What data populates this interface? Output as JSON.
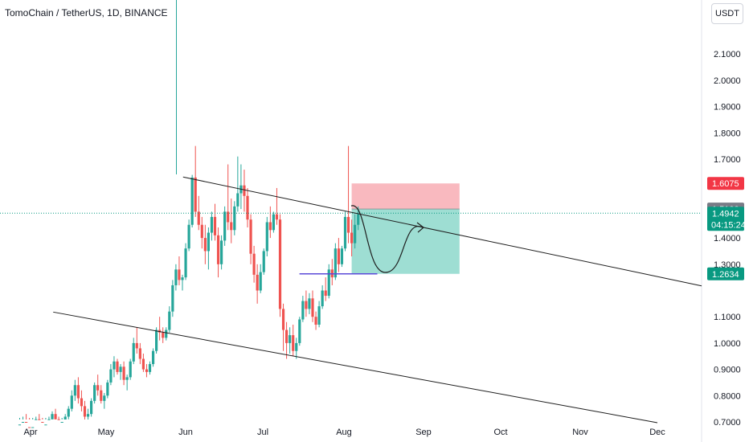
{
  "header": {
    "title": "TomoChain / TetherUS, 1D, BINANCE",
    "currency": "USDT"
  },
  "colors": {
    "up": "#26a69a",
    "down": "#ef5350",
    "stop_zone": "#f7a1a9",
    "target_zone": "#7ed3c4",
    "level_line": "#5b4bd8",
    "price_tag_red": "#f23645",
    "price_tag_grey": "#787b86",
    "price_tag_green": "#089981"
  },
  "chart_data": {
    "type": "candlestick",
    "instrument": "TomoChain / TetherUS",
    "interval": "1D",
    "exchange": "BINANCE",
    "y_ticks": [
      "2.1000",
      "2.0000",
      "1.9000",
      "1.8000",
      "1.7000",
      "1.4000",
      "1.3000",
      "1.1000",
      "1.0000",
      "0.9000",
      "0.8000",
      "0.7000"
    ],
    "x_ticks": [
      "Apr",
      "May",
      "Jun",
      "Jul",
      "Aug",
      "Sep",
      "Oct",
      "Nov",
      "Dec"
    ],
    "ylim": [
      0.69,
      2.2
    ],
    "price_tags": [
      {
        "label": "1.6075",
        "value": 1.6075,
        "kind": "stop"
      },
      {
        "label": "1.5100",
        "value": 1.51,
        "kind": "entry"
      },
      {
        "label": "1.4942",
        "value": 1.4942,
        "kind": "last",
        "countdown": "04:15:24"
      },
      {
        "label": "1.2634",
        "value": 1.2634,
        "kind": "target"
      }
    ],
    "trendlines": [
      {
        "from": [
          "May 31",
          1.632
        ],
        "to": [
          "Dec 1",
          1.253
        ]
      },
      {
        "from": [
          "Apr 10",
          1.118
        ],
        "to": [
          "Dec 1",
          0.697
        ]
      }
    ],
    "support_level": {
      "value": 1.2634,
      "from": "Jul 15",
      "to": "Aug 14"
    },
    "position": {
      "entry": 1.51,
      "stop": 1.6075,
      "target": 1.2634,
      "from": "Aug 4",
      "to": "Sep 15"
    },
    "projection": "price dips to 1.2634 then rebounds toward 1.44",
    "candles": [
      [
        0.68,
        0.7,
        0.66,
        0.69
      ],
      [
        0.69,
        0.72,
        0.67,
        0.7
      ],
      [
        0.7,
        0.73,
        0.66,
        0.68
      ],
      [
        0.68,
        0.7,
        0.65,
        0.66
      ],
      [
        0.66,
        0.69,
        0.64,
        0.68
      ],
      [
        0.68,
        0.72,
        0.67,
        0.71
      ],
      [
        0.71,
        0.73,
        0.69,
        0.7
      ],
      [
        0.7,
        0.71,
        0.67,
        0.68
      ],
      [
        0.68,
        0.7,
        0.66,
        0.69
      ],
      [
        0.69,
        0.72,
        0.68,
        0.71
      ],
      [
        0.71,
        0.74,
        0.7,
        0.73
      ],
      [
        0.73,
        0.75,
        0.7,
        0.71
      ],
      [
        0.71,
        0.72,
        0.68,
        0.69
      ],
      [
        0.69,
        0.71,
        0.67,
        0.7
      ],
      [
        0.7,
        0.73,
        0.69,
        0.72
      ],
      [
        0.72,
        0.76,
        0.71,
        0.75
      ],
      [
        0.75,
        0.82,
        0.74,
        0.8
      ],
      [
        0.8,
        0.86,
        0.78,
        0.84
      ],
      [
        0.84,
        0.87,
        0.77,
        0.79
      ],
      [
        0.79,
        0.82,
        0.74,
        0.76
      ],
      [
        0.76,
        0.78,
        0.7,
        0.72
      ],
      [
        0.72,
        0.75,
        0.69,
        0.73
      ],
      [
        0.73,
        0.79,
        0.72,
        0.78
      ],
      [
        0.78,
        0.85,
        0.77,
        0.84
      ],
      [
        0.84,
        0.88,
        0.8,
        0.82
      ],
      [
        0.82,
        0.84,
        0.77,
        0.78
      ],
      [
        0.78,
        0.81,
        0.75,
        0.8
      ],
      [
        0.8,
        0.86,
        0.79,
        0.85
      ],
      [
        0.85,
        0.92,
        0.84,
        0.9
      ],
      [
        0.9,
        0.95,
        0.87,
        0.93
      ],
      [
        0.93,
        0.94,
        0.88,
        0.89
      ],
      [
        0.89,
        0.92,
        0.86,
        0.91
      ],
      [
        0.91,
        0.93,
        0.84,
        0.86
      ],
      [
        0.86,
        0.88,
        0.82,
        0.87
      ],
      [
        0.87,
        0.94,
        0.86,
        0.93
      ],
      [
        0.93,
        1.02,
        0.92,
        1.0
      ],
      [
        1.0,
        1.06,
        0.96,
        0.98
      ],
      [
        0.98,
        1.0,
        0.92,
        0.94
      ],
      [
        0.94,
        0.96,
        0.89,
        0.9
      ],
      [
        0.9,
        0.92,
        0.87,
        0.89
      ],
      [
        0.89,
        0.93,
        0.88,
        0.92
      ],
      [
        0.92,
        0.98,
        0.91,
        0.97
      ],
      [
        0.97,
        1.06,
        0.96,
        1.05
      ],
      [
        1.05,
        1.1,
        1.01,
        1.04
      ],
      [
        1.04,
        1.06,
        1.0,
        1.02
      ],
      [
        1.02,
        1.06,
        1.01,
        1.05
      ],
      [
        1.05,
        1.14,
        1.04,
        1.12
      ],
      [
        1.12,
        1.24,
        1.1,
        1.22
      ],
      [
        1.22,
        1.3,
        1.2,
        1.28
      ],
      [
        1.28,
        1.33,
        1.22,
        1.24
      ],
      [
        1.24,
        1.26,
        1.2,
        1.25
      ],
      [
        1.25,
        1.38,
        1.24,
        1.36
      ],
      [
        1.36,
        1.47,
        1.35,
        1.45
      ],
      [
        1.45,
        1.64,
        1.44,
        1.63
      ],
      [
        1.63,
        1.75,
        1.48,
        1.5
      ],
      [
        1.5,
        1.56,
        1.43,
        1.45
      ],
      [
        1.45,
        1.48,
        1.36,
        1.4
      ],
      [
        1.4,
        1.45,
        1.3,
        1.35
      ],
      [
        1.35,
        1.44,
        1.28,
        1.42
      ],
      [
        1.42,
        1.5,
        1.39,
        1.48
      ],
      [
        1.48,
        1.53,
        1.39,
        1.41
      ],
      [
        1.41,
        1.44,
        1.25,
        1.3
      ],
      [
        1.3,
        1.41,
        1.28,
        1.39
      ],
      [
        1.39,
        1.52,
        1.37,
        1.5
      ],
      [
        1.5,
        1.68,
        1.43,
        1.46
      ],
      [
        1.46,
        1.55,
        1.38,
        1.43
      ],
      [
        1.43,
        1.54,
        1.41,
        1.52
      ],
      [
        1.52,
        1.71,
        1.5,
        1.57
      ],
      [
        1.57,
        1.68,
        1.51,
        1.6
      ],
      [
        1.6,
        1.66,
        1.5,
        1.56
      ],
      [
        1.56,
        1.59,
        1.44,
        1.47
      ],
      [
        1.47,
        1.49,
        1.3,
        1.34
      ],
      [
        1.34,
        1.37,
        1.23,
        1.26
      ],
      [
        1.26,
        1.3,
        1.15,
        1.2
      ],
      [
        1.2,
        1.3,
        1.19,
        1.27
      ],
      [
        1.27,
        1.36,
        1.26,
        1.35
      ],
      [
        1.35,
        1.48,
        1.33,
        1.46
      ],
      [
        1.46,
        1.52,
        1.4,
        1.43
      ],
      [
        1.43,
        1.5,
        1.42,
        1.49
      ],
      [
        1.49,
        1.59,
        1.45,
        1.47
      ],
      [
        1.47,
        1.49,
        1.1,
        1.13
      ],
      [
        1.13,
        1.15,
        0.97,
        1.05
      ],
      [
        1.05,
        1.08,
        0.94,
        1.0
      ],
      [
        1.0,
        1.06,
        0.96,
        1.03
      ],
      [
        1.03,
        1.07,
        0.95,
        0.97
      ],
      [
        0.97,
        1.02,
        0.94,
        1.0
      ],
      [
        1.0,
        1.1,
        0.99,
        1.09
      ],
      [
        1.09,
        1.18,
        1.08,
        1.16
      ],
      [
        1.16,
        1.2,
        1.1,
        1.13
      ],
      [
        1.13,
        1.19,
        1.11,
        1.17
      ],
      [
        1.17,
        1.2,
        1.08,
        1.1
      ],
      [
        1.1,
        1.12,
        1.05,
        1.07
      ],
      [
        1.07,
        1.16,
        1.06,
        1.14
      ],
      [
        1.14,
        1.22,
        1.13,
        1.2
      ],
      [
        1.2,
        1.25,
        1.16,
        1.18
      ],
      [
        1.18,
        1.3,
        1.17,
        1.28
      ],
      [
        1.28,
        1.32,
        1.22,
        1.25
      ],
      [
        1.25,
        1.38,
        1.24,
        1.36
      ],
      [
        1.36,
        1.4,
        1.27,
        1.3
      ],
      [
        1.3,
        1.37,
        1.29,
        1.36
      ],
      [
        1.36,
        1.5,
        1.35,
        1.48
      ],
      [
        1.48,
        1.75,
        1.38,
        1.42
      ],
      [
        1.42,
        1.47,
        1.33,
        1.38
      ],
      [
        1.38,
        1.49,
        1.36,
        1.45
      ],
      [
        1.45,
        1.52,
        1.43,
        1.49
      ]
    ]
  }
}
